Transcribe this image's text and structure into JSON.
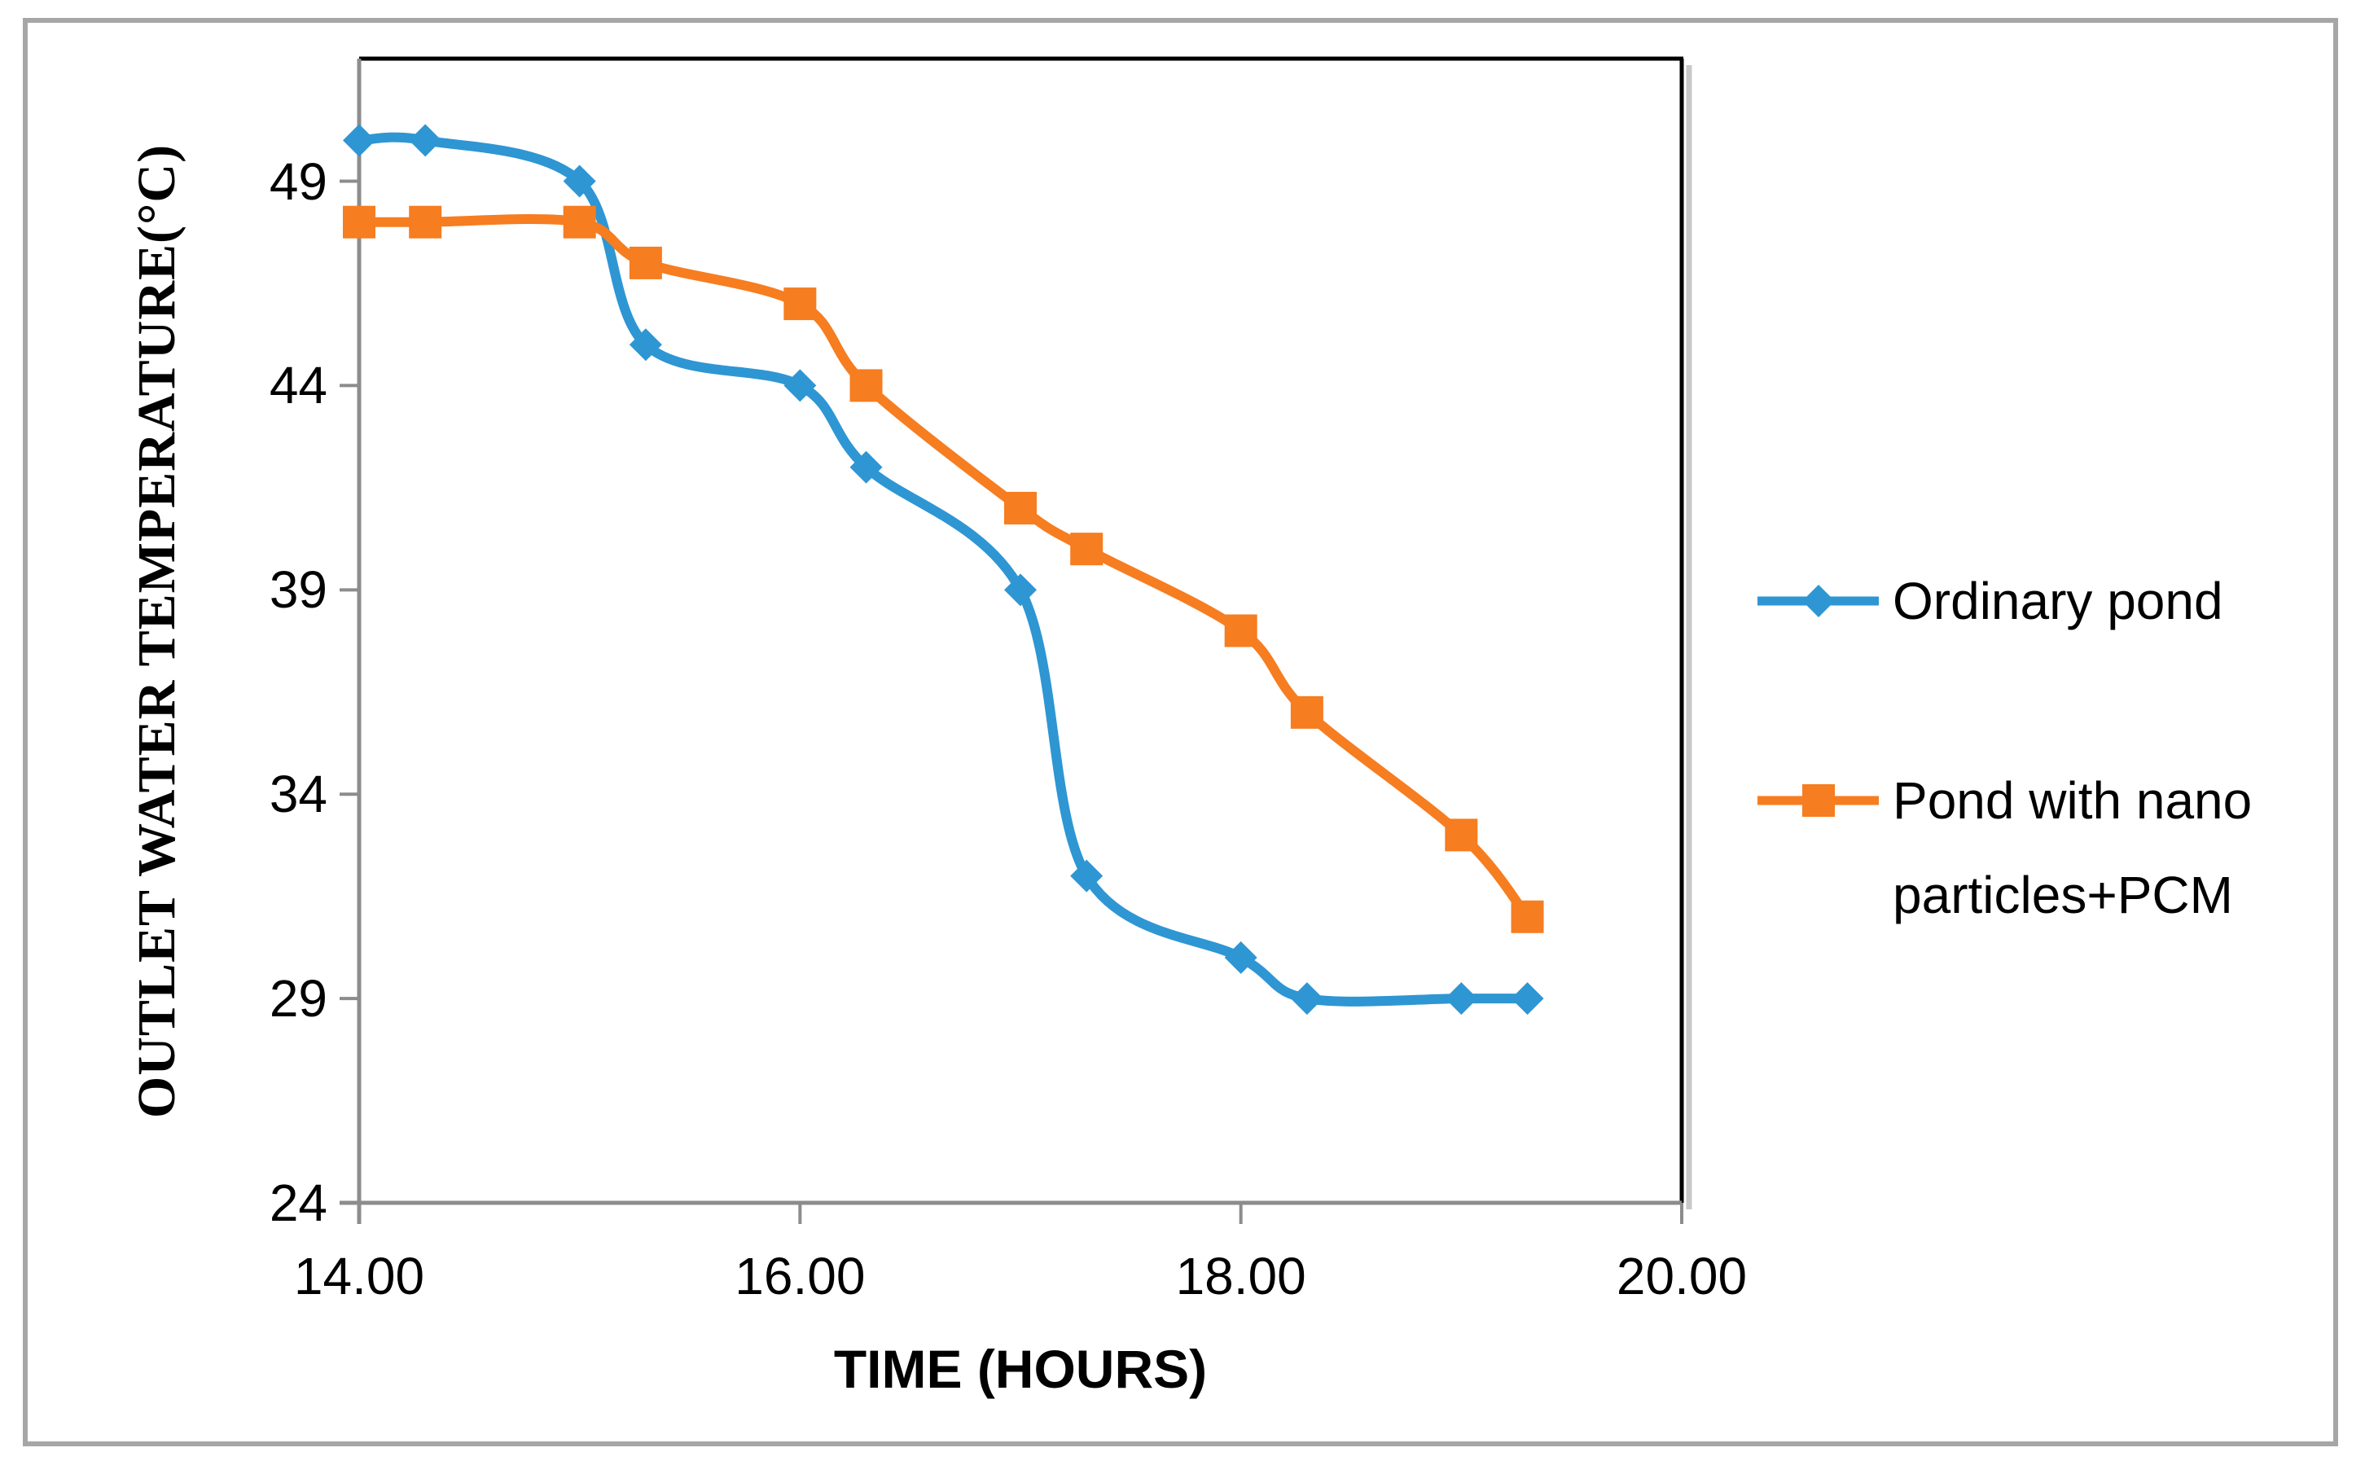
{
  "chart_data": {
    "type": "line",
    "smoothed": true,
    "title": "",
    "xlabel": "TIME (HOURS)",
    "ylabel": "OUTLET WATER TEMPERATURE(°C)",
    "x": [
      14.0,
      14.3,
      15.0,
      15.3,
      16.0,
      16.3,
      17.0,
      17.3,
      18.0,
      18.3,
      19.0,
      19.3
    ],
    "series": [
      {
        "name": "Ordinary pond",
        "color": "#2E96D3",
        "marker": "diamond",
        "values": [
          50,
          50,
          49,
          45,
          44,
          42,
          39,
          32,
          30,
          29,
          29,
          29
        ]
      },
      {
        "name": "Pond with nano particles+PCM",
        "color": "#F67D20",
        "marker": "square",
        "values": [
          48,
          48,
          48,
          47,
          46,
          44,
          41,
          40,
          38,
          36,
          33,
          31
        ]
      }
    ],
    "xticks": {
      "values": [
        14,
        16,
        18,
        20
      ],
      "labels": [
        "14.00",
        "16.00",
        "18.00",
        "20.00"
      ]
    },
    "yticks": {
      "values": [
        49,
        44,
        39,
        34,
        29,
        24
      ],
      "labels": [
        "49",
        "44",
        "39",
        "34",
        "29",
        "24"
      ]
    },
    "x_range": [
      14,
      20
    ],
    "y_range": [
      24,
      52
    ],
    "grid": false,
    "legend_position": "right",
    "axis_color": "#8C8C8C",
    "plot_border_color": "#000000",
    "figure_border_color": "#A6A6A6",
    "background_color": "#FFFFFF"
  }
}
